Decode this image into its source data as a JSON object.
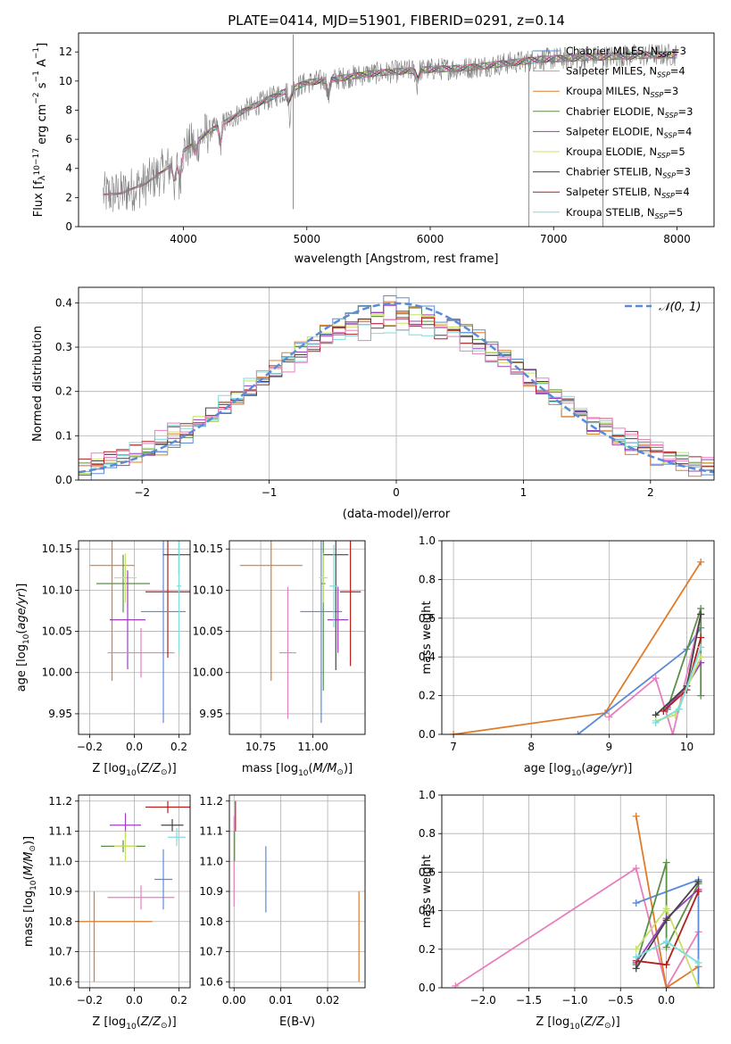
{
  "title": "PLATE=0414, MJD=51901, FIBERID=0291, z=0.14",
  "colors": {
    "palette": [
      "#5a8bd9",
      "#e07b2a",
      "#5b8f48",
      "#9b3fbf",
      "#c8e06a",
      "#444444",
      "#b41e1e",
      "#7fdcdc",
      "#e87fbf"
    ]
  },
  "chart_data": [
    {
      "id": "spectrum",
      "type": "line",
      "xlabel": "wavelength [Angstrom, rest frame]",
      "ylabel": "Flux [f_λ 10^-17 erg cm^-2 s^-1 A^-1]",
      "xlim": [
        3150,
        8300
      ],
      "ylim": [
        0,
        13.3
      ],
      "xticks": [
        4000,
        5000,
        6000,
        7000,
        8000
      ],
      "yticks": [
        0,
        2,
        4,
        6,
        8,
        10,
        12
      ],
      "grid": false,
      "legend_position": "top-right",
      "legend": [
        {
          "name": "Chabrier MILES, N",
          "sub": "SSP",
          "suffix": "=3",
          "color": "#5a8bd9"
        },
        {
          "name": "Salpeter MILES, N",
          "sub": "SSP",
          "suffix": "=4",
          "color": "#e87fbf"
        },
        {
          "name": "Kroupa MILES, N",
          "sub": "SSP",
          "suffix": "=3",
          "color": "#e07b2a"
        },
        {
          "name": "Chabrier ELODIE, N",
          "sub": "SSP",
          "suffix": "=3",
          "color": "#5b8f48"
        },
        {
          "name": "Salpeter ELODIE, N",
          "sub": "SSP",
          "suffix": "=4",
          "color": "#9b3fbf"
        },
        {
          "name": "Kroupa ELODIE, N",
          "sub": "SSP",
          "suffix": "=5",
          "color": "#c8e06a"
        },
        {
          "name": "Chabrier STELIB, N",
          "sub": "SSP",
          "suffix": "=3",
          "color": "#444444"
        },
        {
          "name": "Salpeter STELIB, N",
          "sub": "SSP",
          "suffix": "=4",
          "color": "#b41e1e"
        },
        {
          "name": "Kroupa STELIB, N",
          "sub": "SSP",
          "suffix": "=5",
          "color": "#7fdcdc"
        }
      ],
      "continuum": {
        "x": [
          3350,
          3500,
          3700,
          3900,
          4000,
          4200,
          4500,
          4800,
          5000,
          5200,
          5500,
          5800,
          6000,
          6300,
          6600,
          6900,
          7200,
          7500,
          7800,
          8000
        ],
        "y": [
          2.2,
          2.3,
          3.0,
          4.2,
          5.2,
          6.5,
          8.0,
          9.2,
          9.9,
          10.1,
          10.5,
          10.7,
          10.8,
          10.9,
          11.2,
          11.5,
          11.6,
          11.7,
          11.8,
          11.8
        ]
      },
      "absorption_lines": [
        {
          "x": 3934,
          "depth": 0.5
        },
        {
          "x": 3969,
          "depth": 0.4
        },
        {
          "x": 4101,
          "depth": 0.15
        },
        {
          "x": 4300,
          "depth": 0.2
        },
        {
          "x": 4861,
          "depth": 0.2
        },
        {
          "x": 5175,
          "depth": 0.12
        },
        {
          "x": 5892,
          "depth": 0.1
        }
      ],
      "glitches": [
        {
          "x": 4890,
          "y_low": 1.2,
          "y_high": 13.2
        },
        {
          "x": 6800,
          "y_low": 0,
          "y_high": 11.3
        },
        {
          "x": 7400,
          "y_low": 0,
          "y_high": 11.5
        }
      ]
    },
    {
      "id": "residuals",
      "type": "line",
      "xlabel": "(data-model)/error",
      "ylabel": "Normed distribution",
      "xlim": [
        -2.5,
        2.5
      ],
      "ylim": [
        0,
        0.435
      ],
      "xticks": [
        -2,
        -1,
        0,
        1,
        2
      ],
      "yticks": [
        0.0,
        0.1,
        0.2,
        0.3,
        0.4
      ],
      "grid": true,
      "legend_position": "top-right",
      "legend_label": "𝒩(0, 1)",
      "gaussian": {
        "mean": 0,
        "sigma": 1,
        "color": "#5a8bd9"
      },
      "histogram": {
        "bins": 50,
        "range": [
          -2.5,
          2.5
        ],
        "sigma": 1.05,
        "noise": 0.02
      }
    },
    {
      "id": "z-age",
      "type": "scatter",
      "xlabel": "Z [log10(Z/Z⊙)]",
      "ylabel": "age  [log10(age/yr)]",
      "xlim": [
        -0.25,
        0.25
      ],
      "ylim": [
        9.925,
        10.16
      ],
      "xticks": [
        -0.2,
        0.0,
        0.2
      ],
      "yticks": [
        9.95,
        10.0,
        10.05,
        10.1,
        10.15
      ],
      "grid": true,
      "series": [
        {
          "color": "#e07b2a",
          "x": -0.1,
          "x_err": 0.1,
          "y": 10.13,
          "y_err": 0.14
        },
        {
          "color": "#5b8f48",
          "x": -0.05,
          "x_err": 0.12,
          "y": 10.108,
          "y_err": 0.035
        },
        {
          "color": "#c8e06a",
          "x": -0.04,
          "x_err": 0.05,
          "y": 10.115,
          "y_err": 0.03
        },
        {
          "color": "#9b3fbf",
          "x": -0.03,
          "x_err": 0.08,
          "y": 10.064,
          "y_err": 0.06
        },
        {
          "color": "#e87fbf",
          "x": 0.03,
          "x_err": 0.15,
          "y": 10.024,
          "y_err": 0.03
        },
        {
          "color": "#b41e1e",
          "x": 0.15,
          "x_err": 0.1,
          "y": 10.098,
          "y_err": 0.08
        },
        {
          "color": "#5a8bd9",
          "x": 0.13,
          "x_err": 0.1,
          "y": 10.074,
          "y_err": 0.135
        },
        {
          "color": "#444444",
          "x": 0.2,
          "x_err": 0.07,
          "y": 10.143,
          "y_err": 0.025
        },
        {
          "color": "#7fdcdc",
          "x": 0.2,
          "x_err": 0.01,
          "y": 10.105,
          "y_err": 0.08
        }
      ]
    },
    {
      "id": "mass-age",
      "type": "scatter",
      "xlabel": "mass [log10(M/M⊙)]",
      "ylabel": "",
      "xlim": [
        10.6,
        11.25
      ],
      "ylim": [
        9.925,
        10.16
      ],
      "xticks": [
        10.75,
        11.0
      ],
      "yticks": [
        9.95,
        10.0,
        10.05,
        10.1,
        10.15
      ],
      "grid": true,
      "series": [
        {
          "color": "#e07b2a",
          "x": 10.8,
          "x_err": 0.15,
          "y": 10.13,
          "y_err": 0.14
        },
        {
          "color": "#e87fbf",
          "x": 10.88,
          "x_err": 0.04,
          "y": 10.024,
          "y_err": 0.08
        },
        {
          "color": "#5a8bd9",
          "x": 11.04,
          "x_err": 0.1,
          "y": 10.074,
          "y_err": 0.135
        },
        {
          "color": "#5b8f48",
          "x": 11.05,
          "x_err": 0.01,
          "y": 10.108,
          "y_err": 0.13
        },
        {
          "color": "#c8e06a",
          "x": 11.05,
          "x_err": 0.02,
          "y": 10.115,
          "y_err": 0.03
        },
        {
          "color": "#444444",
          "x": 11.11,
          "x_err": 0.06,
          "y": 10.143,
          "y_err": 0.14
        },
        {
          "color": "#9b3fbf",
          "x": 11.12,
          "x_err": 0.05,
          "y": 10.064,
          "y_err": 0.04
        },
        {
          "color": "#b41e1e",
          "x": 11.18,
          "x_err": 0.05,
          "y": 10.098,
          "y_err": 0.09
        },
        {
          "color": "#7fdcdc",
          "x": 11.1,
          "x_err": 0.02,
          "y": 10.105,
          "y_err": 0.05
        }
      ]
    },
    {
      "id": "age-weight",
      "type": "line",
      "xlabel": "age  [log10(age/yr)]",
      "ylabel": "mass weight",
      "xlim": [
        6.85,
        10.35
      ],
      "ylim": [
        0,
        1.0
      ],
      "xticks": [
        7,
        8,
        9,
        10
      ],
      "yticks": [
        0.0,
        0.2,
        0.4,
        0.6,
        0.8,
        1.0
      ],
      "grid": true,
      "series": [
        {
          "color": "#e07b2a",
          "x": [
            7.0,
            8.95,
            10.18
          ],
          "y": [
            0.0,
            0.11,
            0.89
          ]
        },
        {
          "color": "#5a8bd9",
          "x": [
            8.6,
            10.0,
            10.18
          ],
          "y": [
            0.0,
            0.44,
            0.55
          ]
        },
        {
          "color": "#e87fbf",
          "x": [
            9.0,
            9.6,
            9.82,
            10.18
          ],
          "y": [
            0.09,
            0.29,
            0.0,
            0.62
          ]
        },
        {
          "color": "#5b8f48",
          "x": [
            9.75,
            10.18,
            10.18
          ],
          "y": [
            0.13,
            0.65,
            0.2
          ]
        },
        {
          "color": "#9b3fbf",
          "x": [
            9.75,
            10.0,
            10.18
          ],
          "y": [
            0.14,
            0.25,
            0.37
          ]
        },
        {
          "color": "#444444",
          "x": [
            9.6,
            10.0,
            10.18
          ],
          "y": [
            0.1,
            0.25,
            0.62
          ]
        },
        {
          "color": "#b41e1e",
          "x": [
            9.7,
            10.0,
            10.18
          ],
          "y": [
            0.12,
            0.23,
            0.5
          ]
        },
        {
          "color": "#c8e06a",
          "x": [
            9.6,
            9.85,
            10.18
          ],
          "y": [
            0.07,
            0.1,
            0.4
          ]
        },
        {
          "color": "#7fdcdc",
          "x": [
            9.6,
            9.9,
            10.18
          ],
          "y": [
            0.06,
            0.13,
            0.45
          ]
        }
      ]
    },
    {
      "id": "z-mass",
      "type": "scatter",
      "xlabel": "Z [log10(Z/Z⊙)]",
      "ylabel": "mass [log10(M/M⊙)]",
      "xlim": [
        -0.25,
        0.25
      ],
      "ylim": [
        10.58,
        11.22
      ],
      "xticks": [
        -0.2,
        0.0,
        0.2
      ],
      "yticks": [
        10.6,
        10.7,
        10.8,
        10.9,
        11.0,
        11.1,
        11.2
      ],
      "grid": true,
      "series": [
        {
          "color": "#e07b2a",
          "x": -0.15,
          "x_err": 0.23,
          "y": 10.8,
          "y_err": 0.0
        },
        {
          "color": "#e07b2a",
          "x": -0.18,
          "x_err": 0.0,
          "y": 10.75,
          "y_err": 0.15
        },
        {
          "color": "#9b3fbf",
          "x": -0.04,
          "x_err": 0.07,
          "y": 11.12,
          "y_err": 0.04
        },
        {
          "color": "#5b8f48",
          "x": -0.05,
          "x_err": 0.1,
          "y": 11.05,
          "y_err": 0.02
        },
        {
          "color": "#c8e06a",
          "x": -0.04,
          "x_err": 0.05,
          "y": 11.05,
          "y_err": 0.05
        },
        {
          "color": "#e87fbf",
          "x": 0.03,
          "x_err": 0.15,
          "y": 10.88,
          "y_err": 0.04
        },
        {
          "color": "#b41e1e",
          "x": 0.15,
          "x_err": 0.1,
          "y": 11.18,
          "y_err": 0.02
        },
        {
          "color": "#5a8bd9",
          "x": 0.13,
          "x_err": 0.04,
          "y": 10.94,
          "y_err": 0.1
        },
        {
          "color": "#444444",
          "x": 0.17,
          "x_err": 0.05,
          "y": 11.12,
          "y_err": 0.02
        },
        {
          "color": "#7fdcdc",
          "x": 0.19,
          "x_err": 0.04,
          "y": 11.08,
          "y_err": 0.03
        }
      ]
    },
    {
      "id": "ebv-mass",
      "type": "scatter",
      "xlabel": "E(B-V)",
      "ylabel": "",
      "xlim": [
        -0.001,
        0.028
      ],
      "ylim": [
        10.58,
        11.22
      ],
      "xticks": [
        0.0,
        0.01,
        0.02
      ],
      "yticks": [
        10.6,
        10.7,
        10.8,
        10.9,
        11.0,
        11.1,
        11.2
      ],
      "grid": true,
      "series": [
        {
          "color": "#b41e1e",
          "x": 0.0003,
          "x_err": 0.0,
          "y": 11.15,
          "y_err": 0.05
        },
        {
          "color": "#e87fbf",
          "x": 0.0,
          "x_err": 0.0,
          "y": 11.0,
          "y_err": 0.15
        },
        {
          "color": "#5b8f48",
          "x": 0.0001,
          "x_err": 0.0,
          "y": 11.05,
          "y_err": 0.05
        },
        {
          "color": "#5a8bd9",
          "x": 0.0068,
          "x_err": 0.0,
          "y": 10.94,
          "y_err": 0.11
        },
        {
          "color": "#e07b2a",
          "x": 0.0267,
          "x_err": 0.0,
          "y": 10.75,
          "y_err": 0.15
        }
      ]
    },
    {
      "id": "z-weight",
      "type": "line",
      "xlabel": "Z [log10(Z/Z⊙)]",
      "ylabel": "mass weight",
      "xlim": [
        -2.45,
        0.52
      ],
      "ylim": [
        0,
        1.0
      ],
      "xticks": [
        -2.0,
        -1.5,
        -1.0,
        -0.5,
        0.0
      ],
      "yticks": [
        0.0,
        0.2,
        0.4,
        0.6,
        0.8,
        1.0
      ],
      "grid": true,
      "series": [
        {
          "color": "#e87fbf",
          "x": [
            -2.3,
            -0.33,
            0.0,
            0.35
          ],
          "y": [
            0.01,
            0.62,
            0.0,
            0.29
          ]
        },
        {
          "color": "#e07b2a",
          "x": [
            -0.33,
            0.0,
            0.35
          ],
          "y": [
            0.89,
            0.0,
            0.11
          ]
        },
        {
          "color": "#5a8bd9",
          "x": [
            -0.33,
            0.35,
            0.35
          ],
          "y": [
            0.44,
            0.56,
            0.0
          ]
        },
        {
          "color": "#5b8f48",
          "x": [
            -0.33,
            0.0,
            0.0,
            0.35
          ],
          "y": [
            0.12,
            0.65,
            0.21,
            0.54
          ]
        },
        {
          "color": "#c8e06a",
          "x": [
            -0.33,
            0.0,
            0.35
          ],
          "y": [
            0.2,
            0.41,
            0.0
          ]
        },
        {
          "color": "#9b3fbf",
          "x": [
            -0.33,
            0.0,
            0.35
          ],
          "y": [
            0.13,
            0.36,
            0.51
          ]
        },
        {
          "color": "#444444",
          "x": [
            -0.33,
            0.0,
            0.35
          ],
          "y": [
            0.1,
            0.35,
            0.55
          ]
        },
        {
          "color": "#b41e1e",
          "x": [
            -0.33,
            0.0,
            0.35
          ],
          "y": [
            0.14,
            0.12,
            0.5
          ]
        },
        {
          "color": "#7fdcdc",
          "x": [
            -0.33,
            0.0,
            0.35
          ],
          "y": [
            0.16,
            0.24,
            0.13
          ]
        }
      ]
    }
  ]
}
